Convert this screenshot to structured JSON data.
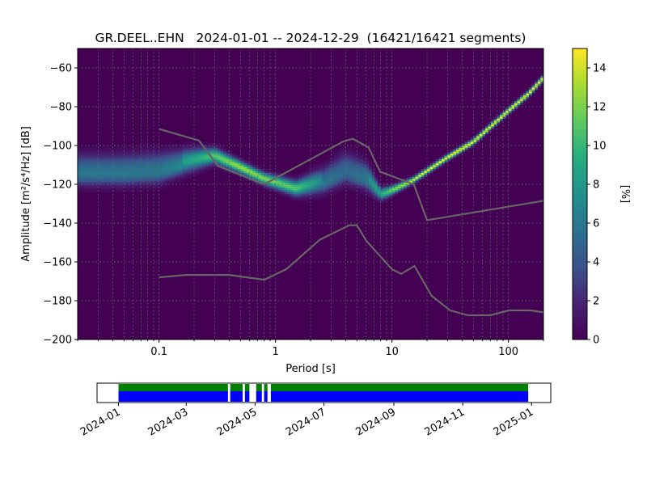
{
  "chart_data": {
    "type": "heatmap",
    "title": "GR.DEEL..EHN   2024-01-01 -- 2024-12-29  (16421/16421 segments)",
    "xlabel": "Period [s]",
    "ylabel": "Amplitude [m²/s⁴/Hz] [dB]",
    "x_scale": "log",
    "xlim": [
      0.02,
      200
    ],
    "ylim": [
      -200,
      -50
    ],
    "x_ticks": [
      {
        "v": 0.1,
        "label": "0.1"
      },
      {
        "v": 1,
        "label": "1"
      },
      {
        "v": 10,
        "label": "10"
      },
      {
        "v": 100,
        "label": "100"
      }
    ],
    "y_ticks": [
      {
        "v": -60,
        "label": "−60"
      },
      {
        "v": -80,
        "label": "−80"
      },
      {
        "v": -100,
        "label": "−100"
      },
      {
        "v": -120,
        "label": "−120"
      },
      {
        "v": -140,
        "label": "−140"
      },
      {
        "v": -160,
        "label": "−160"
      },
      {
        "v": -180,
        "label": "−180"
      },
      {
        "v": -200,
        "label": "−200"
      }
    ],
    "grid": true,
    "colormap": "viridis",
    "colorbar": {
      "label": "[%]",
      "range": [
        0,
        15
      ],
      "ticks": [
        {
          "v": 0,
          "label": "0"
        },
        {
          "v": 2,
          "label": "2"
        },
        {
          "v": 4,
          "label": "4"
        },
        {
          "v": 6,
          "label": "6"
        },
        {
          "v": 8,
          "label": "8"
        },
        {
          "v": 10,
          "label": "10"
        },
        {
          "v": 12,
          "label": "12"
        },
        {
          "v": 14,
          "label": "14"
        }
      ]
    },
    "density_ridge": {
      "columns": [
        "period_s",
        "mode_db",
        "spread_db",
        "peak_percent"
      ],
      "points": [
        [
          0.02,
          -112,
          5,
          7
        ],
        [
          0.05,
          -112,
          5,
          7
        ],
        [
          0.1,
          -111,
          5,
          7
        ],
        [
          0.2,
          -107,
          3.5,
          9
        ],
        [
          0.3,
          -105,
          2.5,
          11
        ],
        [
          0.5,
          -111,
          2,
          13
        ],
        [
          0.8,
          -117,
          2,
          12
        ],
        [
          1.5,
          -122,
          2.5,
          11
        ],
        [
          2.5,
          -118,
          4,
          7
        ],
        [
          4,
          -111,
          5,
          6
        ],
        [
          6,
          -115,
          4.5,
          7
        ],
        [
          8,
          -125,
          2,
          9
        ],
        [
          10,
          -123,
          1.5,
          12
        ],
        [
          15,
          -118,
          1,
          14
        ],
        [
          20,
          -113,
          1,
          15
        ],
        [
          30,
          -106,
          1,
          15
        ],
        [
          50,
          -98,
          1,
          15
        ],
        [
          100,
          -82,
          1,
          15
        ],
        [
          150,
          -73,
          1,
          15
        ],
        [
          200,
          -65,
          1,
          15
        ]
      ]
    },
    "noise_models": [
      {
        "name": "NHNM",
        "color": "#666666",
        "points": [
          [
            0.1,
            -91.5
          ],
          [
            0.22,
            -97.4
          ],
          [
            0.32,
            -110.5
          ],
          [
            0.8,
            -120
          ],
          [
            3.8,
            -98
          ],
          [
            4.6,
            -96.5
          ],
          [
            6.3,
            -101
          ],
          [
            7.9,
            -113.5
          ],
          [
            15.4,
            -120
          ],
          [
            20,
            -138.5
          ],
          [
            200,
            -128.5
          ]
        ]
      },
      {
        "name": "NLNM",
        "color": "#666666",
        "points": [
          [
            0.1,
            -168
          ],
          [
            0.17,
            -166.7
          ],
          [
            0.4,
            -166.7
          ],
          [
            0.8,
            -169.2
          ],
          [
            1.24,
            -163.7
          ],
          [
            2.4,
            -148.6
          ],
          [
            4.3,
            -141.1
          ],
          [
            5,
            -141.1
          ],
          [
            6,
            -149
          ],
          [
            10,
            -163.8
          ],
          [
            12,
            -166.2
          ],
          [
            15.6,
            -162.1
          ],
          [
            21.9,
            -177.5
          ],
          [
            31.6,
            -185
          ],
          [
            45,
            -187.5
          ],
          [
            70,
            -187.5
          ],
          [
            101,
            -185
          ],
          [
            154,
            -185
          ],
          [
            200,
            -186
          ]
        ]
      }
    ],
    "timeline": {
      "range": [
        "2023-12-13",
        "2025-01-18"
      ],
      "ticks": [
        {
          "v": "2024-01-01",
          "label": "2024-01"
        },
        {
          "v": "2024-03-01",
          "label": "2024-03"
        },
        {
          "v": "2024-05-01",
          "label": "2024-05"
        },
        {
          "v": "2024-07-01",
          "label": "2024-07"
        },
        {
          "v": "2024-09-01",
          "label": "2024-09"
        },
        {
          "v": "2024-11-01",
          "label": "2024-11"
        },
        {
          "v": "2025-01-01",
          "label": "2025-01"
        }
      ],
      "data_start": "2024-01-01",
      "data_end": "2024-12-29",
      "gaps": [
        [
          "2024-04-07",
          "2024-04-09"
        ],
        [
          "2024-04-20",
          "2024-04-22"
        ],
        [
          "2024-04-26",
          "2024-05-02"
        ],
        [
          "2024-05-07",
          "2024-05-09"
        ],
        [
          "2024-05-12",
          "2024-05-15"
        ]
      ],
      "available_color": "#008000",
      "used_color": "#0000ff"
    }
  }
}
